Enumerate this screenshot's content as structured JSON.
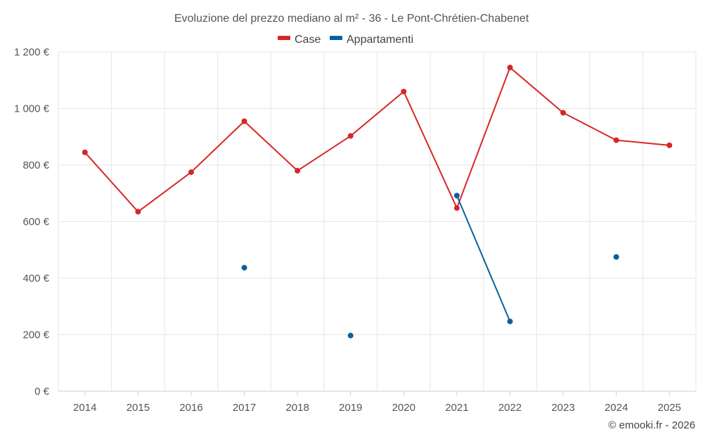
{
  "chart_data": {
    "type": "line",
    "title": "Evoluzione del prezzo mediano al m² - 36 - Le Pont-Chrétien-Chabenet",
    "categories": [
      "2014",
      "2015",
      "2016",
      "2017",
      "2018",
      "2019",
      "2020",
      "2021",
      "2022",
      "2023",
      "2024",
      "2025"
    ],
    "y_ticks": [
      0,
      200,
      400,
      600,
      800,
      1000,
      1200
    ],
    "y_tick_labels": [
      "0 €",
      "200 €",
      "400 €",
      "600 €",
      "800 €",
      "1 000 €",
      "1 200 €"
    ],
    "ylim": [
      0,
      1200
    ],
    "legend_position": "top-center",
    "grid": true,
    "series": [
      {
        "name": "Case",
        "color": "#d62728",
        "values": [
          845,
          635,
          775,
          955,
          780,
          903,
          1060,
          648,
          1145,
          985,
          888,
          870
        ]
      },
      {
        "name": "Appartamenti",
        "color": "#08629c",
        "values": [
          null,
          null,
          null,
          437,
          null,
          197,
          null,
          692,
          247,
          null,
          475,
          null
        ]
      }
    ]
  },
  "credit": "© emooki.fr - 2026"
}
